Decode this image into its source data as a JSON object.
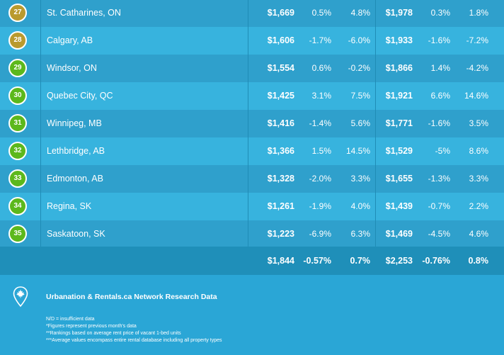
{
  "rows": [
    {
      "rank": "27",
      "color": "#b99a2e",
      "city": "St. Catharines, ON",
      "rent1": "$1,669",
      "mom1": "0.5%",
      "yoy1": "4.8%",
      "rent2": "$1,978",
      "mom2": "0.3%",
      "yoy2": "1.8%"
    },
    {
      "rank": "28",
      "color": "#b99a2e",
      "city": "Calgary, AB",
      "rent1": "$1,606",
      "mom1": "-1.7%",
      "yoy1": "-6.0%",
      "rent2": "$1,933",
      "mom2": "-1.6%",
      "yoy2": "-7.2%"
    },
    {
      "rank": "29",
      "color": "#5cb81c",
      "city": "Windsor, ON",
      "rent1": "$1,554",
      "mom1": "0.6%",
      "yoy1": "-0.2%",
      "rent2": "$1,866",
      "mom2": "1.4%",
      "yoy2": "-4.2%"
    },
    {
      "rank": "30",
      "color": "#5cb81c",
      "city": "Quebec City, QC",
      "rent1": "$1,425",
      "mom1": "3.1%",
      "yoy1": "7.5%",
      "rent2": "$1,921",
      "mom2": "6.6%",
      "yoy2": "14.6%"
    },
    {
      "rank": "31",
      "color": "#5cb81c",
      "city": "Winnipeg, MB",
      "rent1": "$1,416",
      "mom1": "-1.4%",
      "yoy1": "5.6%",
      "rent2": "$1,771",
      "mom2": "-1.6%",
      "yoy2": "3.5%"
    },
    {
      "rank": "32",
      "color": "#5cb81c",
      "city": "Lethbridge, AB",
      "rent1": "$1,366",
      "mom1": "1.5%",
      "yoy1": "14.5%",
      "rent2": "$1,529",
      "mom2": "-5%",
      "yoy2": "8.6%"
    },
    {
      "rank": "33",
      "color": "#5cb81c",
      "city": "Edmonton, AB",
      "rent1": "$1,328",
      "mom1": "-2.0%",
      "yoy1": "3.3%",
      "rent2": "$1,655",
      "mom2": "-1.3%",
      "yoy2": "3.3%"
    },
    {
      "rank": "34",
      "color": "#5cb81c",
      "city": "Regina, SK",
      "rent1": "$1,261",
      "mom1": "-1.9%",
      "yoy1": "4.0%",
      "rent2": "$1,439",
      "mom2": "-0.7%",
      "yoy2": "2.2%"
    },
    {
      "rank": "35",
      "color": "#5cb81c",
      "city": "Saskatoon, SK",
      "rent1": "$1,223",
      "mom1": "-6.9%",
      "yoy1": "6.3%",
      "rent2": "$1,469",
      "mom2": "-4.5%",
      "yoy2": "4.6%"
    }
  ],
  "totals": {
    "rent1": "$1,844",
    "mom1": "-0.57%",
    "yoy1": "0.7%",
    "rent2": "$2,253",
    "mom2": "-0.76%",
    "yoy2": "0.8%"
  },
  "footer": {
    "icon": "maple-leaf-pin-icon",
    "source": "Urbanation & Rentals.ca Network Research Data",
    "notes": [
      "N/D = insufficient data",
      "*Figures represent previous month's data",
      "**Rankings based on average rent price of vacant 1-bed units",
      "***Average values encompass entire rental database including all property types"
    ]
  }
}
